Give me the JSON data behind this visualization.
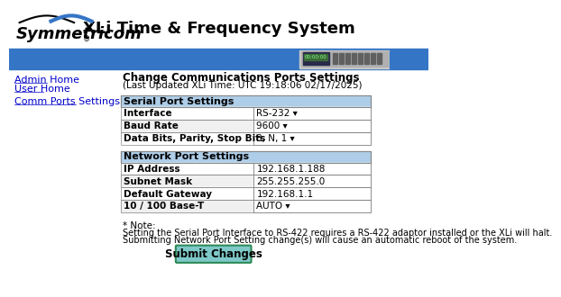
{
  "title": "XLi Time & Frequency System",
  "header_blue": "#3575C5",
  "bg_color": "#ffffff",
  "link_color": "#0000CC",
  "nav_links": [
    "Admin Home",
    "User Home",
    "Comm Ports Settings"
  ],
  "page_title": "Change Communications Ports Settings",
  "page_subtitle": "(Last Updated XLi Time: UTC 19:18:06 02/17/2025)",
  "serial_section_title": "Serial Port Settings",
  "serial_rows": [
    [
      "Interface",
      "RS-232 ▾"
    ],
    [
      "Baud Rate",
      "9600 ▾"
    ],
    [
      "Data Bits, Parity, Stop Bits",
      "8, N, 1 ▾"
    ]
  ],
  "network_section_title": "Network Port Settings",
  "network_rows": [
    [
      "IP Address",
      "192.168.1.188"
    ],
    [
      "Subnet Mask",
      "255.255.255.0"
    ],
    [
      "Default Gateway",
      "192.168.1.1"
    ],
    [
      "10 / 100 Base-T",
      "AUTO ▾"
    ]
  ],
  "note_title": "* Note:",
  "note_line1": "Setting the Serial Port Interface to RS-422 requires a RS-422 adaptor installed or the XLi will halt.",
  "note_line2": "Submitting Network Port Setting change(s) will cause an automatic reboot of the system.",
  "button_text": "Submit Changes",
  "table_header_bg": "#aecde8",
  "table_row_bg1": "#ffffff",
  "table_row_bg2": "#f0f0f0",
  "table_border": "#888888",
  "button_bg": "#7EC8C8",
  "button_border": "#2E8B57"
}
